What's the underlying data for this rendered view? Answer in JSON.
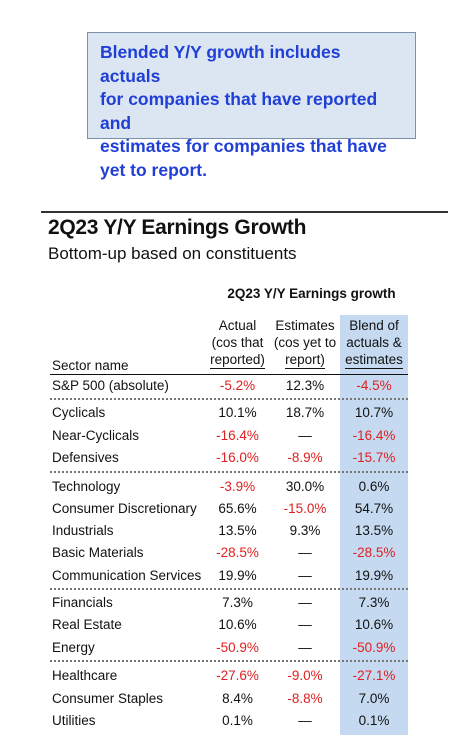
{
  "note": {
    "lines": [
      "Blended Y/Y growth includes actuals",
      "for companies that have reported and",
      "estimates for companies that have",
      "yet to report."
    ]
  },
  "title": "2Q23 Y/Y Earnings Growth",
  "subtitle": "Bottom-up based on constituents",
  "table": {
    "group_title": "2Q23 Y/Y Earnings growth",
    "sector_header": "Sector name",
    "col_actual": [
      "Actual",
      "(cos that",
      "reported)"
    ],
    "col_estimates": [
      "Estimates",
      "(cos yet to",
      "report)"
    ],
    "col_blend": [
      "Blend of",
      "actuals &",
      "estimates"
    ],
    "colors": {
      "negative": "#e02020",
      "blend_column": "#c5daf0",
      "note_text": "#1f3fd6",
      "note_bg": "#dce6f2"
    },
    "rows": [
      {
        "name": "S&P 500 (absolute)",
        "actual": "-5.2%",
        "estimates": "12.3%",
        "blend": "-4.5%"
      },
      {
        "name": "Cyclicals",
        "actual": "10.1%",
        "estimates": "18.7%",
        "blend": "10.7%"
      },
      {
        "name": "Near-Cyclicals",
        "actual": "-16.4%",
        "estimates": "—",
        "blend": "-16.4%"
      },
      {
        "name": "Defensives",
        "actual": "-16.0%",
        "estimates": "-8.9%",
        "blend": "-15.7%"
      },
      {
        "name": "Technology",
        "actual": "-3.9%",
        "estimates": "30.0%",
        "blend": "0.6%"
      },
      {
        "name": "Consumer Discretionary",
        "actual": "65.6%",
        "estimates": "-15.0%",
        "blend": "54.7%"
      },
      {
        "name": "Industrials",
        "actual": "13.5%",
        "estimates": "9.3%",
        "blend": "13.5%"
      },
      {
        "name": "Basic Materials",
        "actual": "-28.5%",
        "estimates": "—",
        "blend": "-28.5%"
      },
      {
        "name": "Communication Services",
        "actual": "19.9%",
        "estimates": "—",
        "blend": "19.9%"
      },
      {
        "name": "Financials",
        "actual": "7.3%",
        "estimates": "—",
        "blend": "7.3%"
      },
      {
        "name": "Real Estate",
        "actual": "10.6%",
        "estimates": "—",
        "blend": "10.6%"
      },
      {
        "name": "Energy",
        "actual": "-50.9%",
        "estimates": "—",
        "blend": "-50.9%"
      },
      {
        "name": "Healthcare",
        "actual": "-27.6%",
        "estimates": "-9.0%",
        "blend": "-27.1%"
      },
      {
        "name": "Consumer Staples",
        "actual": "8.4%",
        "estimates": "-8.8%",
        "blend": "7.0%"
      },
      {
        "name": "Utilities",
        "actual": "0.1%",
        "estimates": "—",
        "blend": "0.1%"
      }
    ]
  }
}
